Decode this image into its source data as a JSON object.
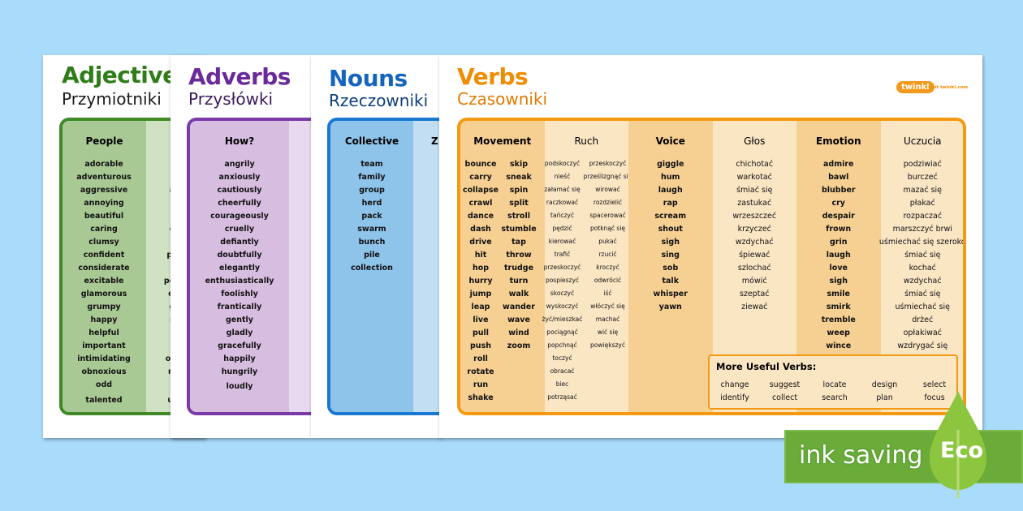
{
  "adjectives": {
    "title": "Adjectives",
    "subtitle": "Przymiotniki",
    "color": "#2f7d18",
    "header": "People",
    "words": [
      "adorable",
      "adventurous",
      "aggressive",
      "annoying",
      "beautiful",
      "caring",
      "clumsy",
      "confident",
      "considerate",
      "excitable",
      "glamorous",
      "grumpy",
      "happy",
      "helpful",
      "important",
      "intimidating",
      "obnoxious",
      "odd",
      "talented"
    ],
    "partial": [
      "",
      "",
      "a",
      "'",
      "",
      "o",
      "'",
      "pe",
      "",
      "pod",
      "ol",
      "g",
      "s",
      "",
      "",
      "oni",
      "ni",
      "",
      "ut"
    ]
  },
  "adverbs": {
    "title": "Adverbs",
    "subtitle": "Przysłówki",
    "color": "#6a2a9a",
    "header": "How?",
    "words": [
      "angrily",
      "anxiously",
      "cautiously",
      "cheerfully",
      "courageously",
      "cruelly",
      "defiantly",
      "doubtfully",
      "elegantly",
      "enthusiastically",
      "foolishly",
      "frantically",
      "gently",
      "gladly",
      "gracefully",
      "happily",
      "hungrily",
      "loudly"
    ]
  },
  "nouns": {
    "title": "Nouns",
    "subtitle": "Rzeczowniki",
    "color": "#1565c0",
    "header": "Collective",
    "partial_header": "Z",
    "words": [
      "team",
      "family",
      "group",
      "herd",
      "pack",
      "swarm",
      "bunch",
      "pile",
      "collection"
    ]
  },
  "verbs": {
    "title": "Verbs",
    "subtitle": "Czasowniki",
    "color": "#f08c00",
    "logo": "twinkl",
    "logo_link": "visit twinkl.com",
    "columns": [
      {
        "header": "Movement",
        "words": [
          "bounce",
          "carry",
          "collapse",
          "crawl",
          "dance",
          "dash",
          "drive",
          "hit",
          "hop",
          "hurry",
          "jump",
          "leap",
          "live",
          "pull",
          "push",
          "roll",
          "rotate",
          "run",
          "shake"
        ],
        "words2": [
          "skip",
          "sneak",
          "spin",
          "split",
          "stroll",
          "stumble",
          "tap",
          "throw",
          "trudge",
          "turn",
          "walk",
          "wander",
          "wave",
          "wind",
          "zoom"
        ]
      },
      {
        "header": "Ruch",
        "words": [
          "podskoczyć",
          "nieść",
          "załamać się",
          "raczkować",
          "tańczyć",
          "pędzić",
          "kierować",
          "trafić",
          "przeskoczyć",
          "pospieszyć",
          "skoczyć",
          "wyskoczyć",
          "żyć/mieszkać",
          "pociągnąć",
          "popchnąć",
          "toczyć",
          "obracać",
          "biec",
          "potrząsać"
        ],
        "words2": [
          "przeskoczyć",
          "prześlizgnąć się",
          "wirować",
          "rozdzielić",
          "spacerować",
          "potknąć się",
          "pukać",
          "rzucić",
          "kroczyć",
          "odwrócić",
          "iść",
          "włóczyć się",
          "machać",
          "wić się",
          "powiększyć"
        ]
      },
      {
        "header": "Voice",
        "words": [
          "giggle",
          "hum",
          "laugh",
          "rap",
          "scream",
          "shout",
          "sigh",
          "sing",
          "sob",
          "talk",
          "whisper",
          "yawn"
        ]
      },
      {
        "header": "Głos",
        "words": [
          "chichotać",
          "warkotać",
          "śmiać się",
          "zastukać",
          "wrzeszczeć",
          "krzyczeć",
          "wzdychać",
          "śpiewać",
          "szlochać",
          "mówić",
          "szeptać",
          "ziewać"
        ]
      },
      {
        "header": "Emotion",
        "words": [
          "admire",
          "bawl",
          "blubber",
          "cry",
          "despair",
          "frown",
          "grin",
          "laugh",
          "love",
          "sigh",
          "smile",
          "smirk",
          "tremble",
          "weep",
          "wince"
        ]
      },
      {
        "header": "Uczucia",
        "words": [
          "podziwiać",
          "burczeć",
          "mazać się",
          "płakać",
          "rozpaczać",
          "marszczyć brwi",
          "uśmiechać się szeroko",
          "śmiać się",
          "kochać",
          "wzdychać",
          "śmiać się",
          "uśmiechać się",
          "drżeć",
          "opłakiwać",
          "wzdrygać się"
        ]
      }
    ],
    "more": {
      "title": "More Useful Verbs:",
      "words": [
        "change",
        "suggest",
        "locate",
        "design",
        "select",
        "identify",
        "collect",
        "search",
        "plan",
        "focus"
      ]
    }
  },
  "badge": {
    "text": "ink saving",
    "eco": "Eco",
    "color": "#6aab3a"
  }
}
